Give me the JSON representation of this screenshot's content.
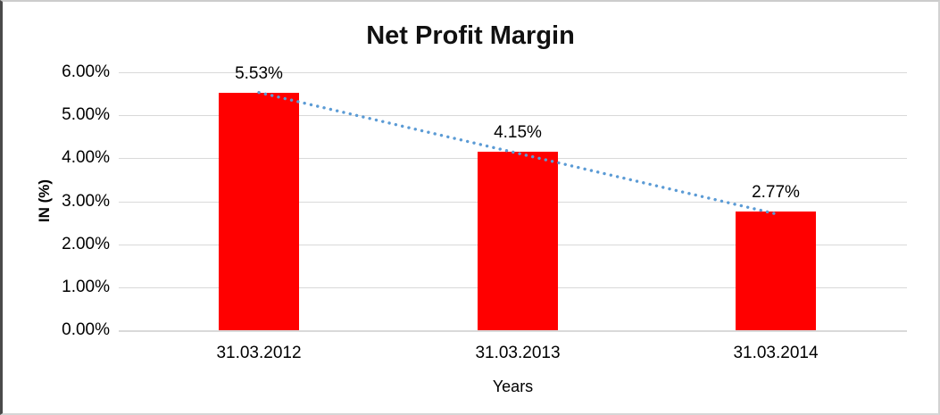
{
  "chart_data": {
    "type": "bar",
    "title": "Net Profit Margin",
    "xlabel": "Years",
    "ylabel": "IN (%)",
    "categories": [
      "31.03.2012",
      "31.03.2013",
      "31.03.2014"
    ],
    "values": [
      5.53,
      4.15,
      2.77
    ],
    "value_labels": [
      "5.53%",
      "4.15%",
      "2.77%"
    ],
    "yticks": [
      {
        "value": 0,
        "label": "0.00%"
      },
      {
        "value": 1,
        "label": "1.00%"
      },
      {
        "value": 2,
        "label": "2.00%"
      },
      {
        "value": 3,
        "label": "3.00%"
      },
      {
        "value": 4,
        "label": "4.00%"
      },
      {
        "value": 5,
        "label": "5.00%"
      },
      {
        "value": 6,
        "label": "6.00%"
      }
    ],
    "ylim": [
      0,
      6
    ],
    "grid": "horizontal",
    "legend": "none",
    "trendline": {
      "style": "dotted",
      "from_category": "31.03.2012",
      "from_value": 5.53,
      "to_category": "31.03.2014",
      "to_value": 2.77
    },
    "colors": {
      "bar": "#FF0000",
      "trendline": "#5B9BD5",
      "gridline": "#D9D9D9",
      "title": "#111111",
      "text": "#000000",
      "background": "#FFFFFF"
    }
  }
}
